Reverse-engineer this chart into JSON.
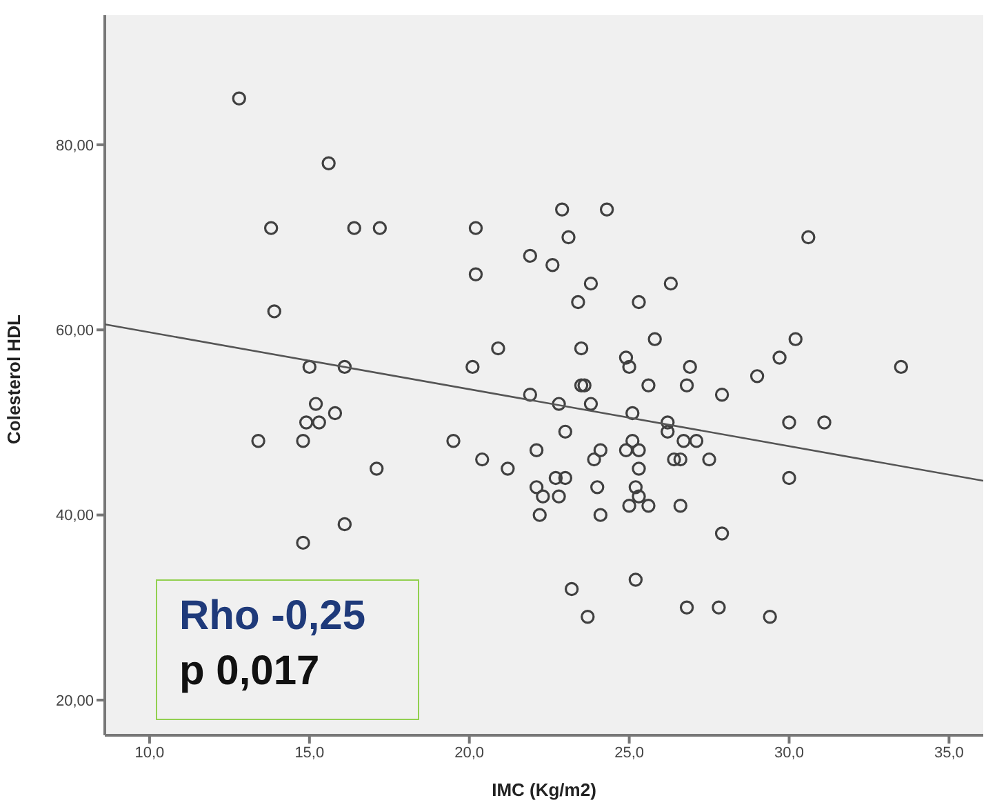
{
  "chart_data": {
    "type": "scatter",
    "xlabel": "IMC (Kg/m2)",
    "ylabel": "Colesterol HDL",
    "xlim": [
      8.6,
      36.07
    ],
    "ylim": [
      16.2,
      94
    ],
    "xticks": [
      {
        "value": 10,
        "label": "10,0"
      },
      {
        "value": 15,
        "label": "15,0"
      },
      {
        "value": 20,
        "label": "20,0"
      },
      {
        "value": 25,
        "label": "25,0"
      },
      {
        "value": 30,
        "label": "30,0"
      },
      {
        "value": 35,
        "label": "35,0"
      }
    ],
    "yticks": [
      {
        "value": 20,
        "label": "20,00"
      },
      {
        "value": 40,
        "label": "40,00"
      },
      {
        "value": 60,
        "label": "60,00"
      },
      {
        "value": 80,
        "label": "80,00"
      }
    ],
    "grid": false,
    "legend": false,
    "annotations": [
      "Rho -0,25",
      "p 0,017"
    ],
    "series": [
      {
        "marker": "circle",
        "color": "#404040",
        "x": [
          12.8,
          15.6,
          13.8,
          16.4,
          17.2,
          20.2,
          20.2,
          21.9,
          13.9,
          20.9,
          15.0,
          16.1,
          20.1,
          22.9,
          24.3,
          23.1,
          22.6,
          23.8,
          26.3,
          23.4,
          25.3,
          30.6,
          23.5,
          25.8,
          24.9,
          25.0,
          26.9,
          29.0,
          29.7,
          30.2,
          33.5,
          23.5,
          23.6,
          25.6,
          26.8,
          21.9,
          22.8,
          23.8,
          25.1,
          27.9,
          26.2,
          26.2,
          30.0,
          31.1,
          23.0,
          25.1,
          26.7,
          27.1,
          22.1,
          24.1,
          24.9,
          25.3,
          23.9,
          26.4,
          26.6,
          27.5,
          25.3,
          22.7,
          23.0,
          22.1,
          22.3,
          22.8,
          22.2,
          24.0,
          25.2,
          25.3,
          25.0,
          25.6,
          26.6,
          24.1,
          30.0,
          27.9,
          23.2,
          25.2,
          23.7,
          26.8,
          27.8,
          29.4,
          15.2,
          14.9,
          15.3,
          15.8,
          13.4,
          14.8,
          19.5,
          20.4,
          21.2,
          17.1,
          16.1,
          14.8
        ],
        "values": [
          85,
          78,
          71,
          71,
          71,
          71,
          66,
          68,
          62,
          58,
          56,
          56,
          56,
          73,
          73,
          70,
          67,
          65,
          65,
          63,
          63,
          70,
          58,
          59,
          57,
          56,
          56,
          55,
          57,
          59,
          56,
          54,
          54,
          54,
          54,
          53,
          52,
          52,
          51,
          53,
          50,
          49,
          50,
          50,
          49,
          48,
          48,
          48,
          47,
          47,
          47,
          47,
          46,
          46,
          46,
          46,
          45,
          44,
          44,
          43,
          42,
          42,
          40,
          43,
          43,
          42,
          41,
          41,
          41,
          40,
          44,
          38,
          32,
          33,
          29,
          30,
          30,
          29,
          52,
          50,
          50,
          51,
          48,
          48,
          48,
          46,
          45,
          45,
          39,
          37
        ]
      },
      {
        "type": "line",
        "marker": "none",
        "color": "#555555",
        "x": [
          8.6,
          36.07
        ],
        "values": [
          60.6,
          43.7
        ]
      }
    ]
  }
}
